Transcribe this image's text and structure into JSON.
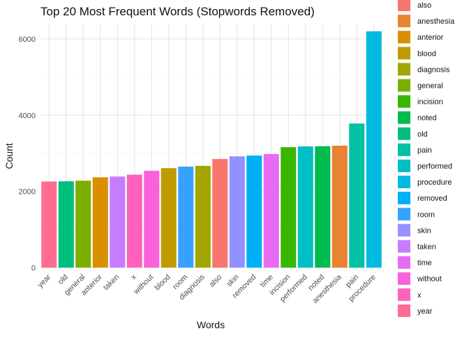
{
  "chart_data": {
    "type": "bar",
    "title": "Top 20 Most Frequent Words (Stopwords Removed)",
    "xlabel": "Words",
    "ylabel": "Count",
    "ylim": [
      0,
      6400
    ],
    "yticks": [
      0,
      2000,
      4000,
      6000
    ],
    "grid": true,
    "legend_position": "right",
    "categories": [
      "year",
      "old",
      "general",
      "anterior",
      "taken",
      "x",
      "without",
      "blood",
      "room",
      "diagnosis",
      "also",
      "skin",
      "removed",
      "time",
      "incision",
      "performed",
      "noted",
      "anesthesia",
      "pain",
      "procedure"
    ],
    "values": [
      2260,
      2265,
      2280,
      2370,
      2390,
      2440,
      2540,
      2610,
      2650,
      2670,
      2850,
      2920,
      2940,
      2980,
      3160,
      3180,
      3185,
      3200,
      3780,
      6200
    ],
    "legend": [
      {
        "label": "also",
        "color": "#F8766D"
      },
      {
        "label": "anesthesia",
        "color": "#EA8331"
      },
      {
        "label": "anterior",
        "color": "#D89000"
      },
      {
        "label": "blood",
        "color": "#C09B00"
      },
      {
        "label": "diagnosis",
        "color": "#A3A500"
      },
      {
        "label": "general",
        "color": "#7CAE00"
      },
      {
        "label": "incision",
        "color": "#39B600"
      },
      {
        "label": "noted",
        "color": "#00BB4E"
      },
      {
        "label": "old",
        "color": "#00BF7D"
      },
      {
        "label": "pain",
        "color": "#00C1A3"
      },
      {
        "label": "performed",
        "color": "#00BFC4"
      },
      {
        "label": "procedure",
        "color": "#00BAE0"
      },
      {
        "label": "removed",
        "color": "#00B0F6"
      },
      {
        "label": "room",
        "color": "#35A2FF"
      },
      {
        "label": "skin",
        "color": "#9590FF"
      },
      {
        "label": "taken",
        "color": "#C77CFF"
      },
      {
        "label": "time",
        "color": "#E76BF3"
      },
      {
        "label": "without",
        "color": "#FA62DB"
      },
      {
        "label": "x",
        "color": "#FF62BC"
      },
      {
        "label": "year",
        "color": "#FF6C91"
      }
    ]
  }
}
